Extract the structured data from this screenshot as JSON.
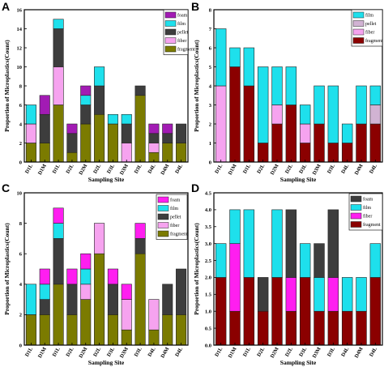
{
  "figure": {
    "ylabel": "Proportion of Microplastics(Count)",
    "xlabel": "Sampling Site"
  },
  "colors": {
    "foam": "#a21bb4",
    "film": "#1ee0ec",
    "pellet": "#3d3d3d",
    "fiber": "#f6a3ef",
    "fragment": "#7b7b00",
    "fragment_dark": "#8b0000",
    "fiber_bright": "#ff1ef0"
  },
  "chart_data": [
    {
      "panel": "A",
      "type": "bar",
      "stacked": true,
      "categories": [
        "D1L",
        "D1M",
        "D1L",
        "D2L",
        "D2M",
        "D2L",
        "D3L",
        "D3M",
        "D3L",
        "D4L",
        "D4M",
        "D4L"
      ],
      "series": [
        {
          "name": "fragment",
          "color": "#7b7b00",
          "values": [
            2,
            2,
            6,
            1,
            4,
            5,
            4,
            0,
            7,
            1,
            2,
            2
          ]
        },
        {
          "name": "fiber",
          "color": "#f6a3ef",
          "values": [
            2,
            0,
            4,
            0,
            0,
            0,
            0,
            2,
            0,
            1,
            0,
            0
          ]
        },
        {
          "name": "pellet",
          "color": "#3d3d3d",
          "values": [
            0,
            3,
            4,
            2,
            2,
            3,
            0,
            2,
            1,
            1,
            1,
            2
          ]
        },
        {
          "name": "film",
          "color": "#1ee0ec",
          "values": [
            2,
            0,
            1,
            0,
            1,
            2,
            1,
            1,
            0,
            0,
            0,
            0
          ]
        },
        {
          "name": "foam",
          "color": "#a21bb4",
          "values": [
            0,
            2,
            0,
            1,
            1,
            0,
            0,
            0,
            0,
            1,
            1,
            0
          ]
        }
      ],
      "ylim": [
        0,
        16
      ],
      "yticks": [
        0,
        2,
        4,
        6,
        8,
        10,
        12,
        14,
        16
      ],
      "legend": [
        "foam",
        "film",
        "pellet",
        "fiber",
        "fragment"
      ],
      "legend_position": "top-right"
    },
    {
      "panel": "B",
      "type": "bar",
      "stacked": true,
      "categories": [
        "D1L",
        "D1M",
        "D1L",
        "D2L",
        "D2M",
        "D2L",
        "D3L",
        "D3M",
        "D3L",
        "D4L",
        "D4M",
        "D4L"
      ],
      "series": [
        {
          "name": "fragment",
          "color": "#8b0000",
          "values": [
            0,
            5,
            4,
            1,
            2,
            3,
            1,
            2,
            1,
            1,
            2,
            2
          ]
        },
        {
          "name": "fiber",
          "color": "#f6a3ef",
          "values": [
            4,
            0,
            0,
            0,
            1,
            0,
            1,
            0,
            0,
            0,
            0,
            0
          ]
        },
        {
          "name": "pellet",
          "color": "#d1b3d3",
          "values": [
            0,
            0,
            0,
            0,
            0,
            0,
            0,
            0,
            0,
            0,
            0,
            1
          ]
        },
        {
          "name": "film",
          "color": "#1ee0ec",
          "values": [
            3,
            1,
            2,
            4,
            2,
            2,
            1,
            2,
            3,
            1,
            2,
            1
          ]
        }
      ],
      "ylim": [
        0,
        8
      ],
      "yticks": [
        0,
        1,
        2,
        3,
        4,
        5,
        6,
        7,
        8
      ],
      "legend": [
        "film",
        "pellet",
        "fiber",
        "fragment"
      ],
      "legend_position": "top-right"
    },
    {
      "panel": "C",
      "type": "bar",
      "stacked": true,
      "categories": [
        "D1L",
        "D1M",
        "D1L",
        "D2L",
        "D2M",
        "D2L",
        "D3L",
        "D3M",
        "D3L",
        "D4L",
        "D4M",
        "D4L"
      ],
      "series": [
        {
          "name": "fragment",
          "color": "#7b7b00",
          "values": [
            2,
            2,
            4,
            2,
            3,
            6,
            2,
            1,
            6,
            1,
            2,
            2
          ]
        },
        {
          "name": "fiber",
          "color": "#f6a3ef",
          "values": [
            0,
            0,
            0,
            0,
            1,
            2,
            0,
            2,
            0,
            2,
            0,
            0
          ]
        },
        {
          "name": "pellet",
          "color": "#3d3d3d",
          "values": [
            0,
            1,
            3,
            2,
            0,
            0,
            2,
            0,
            1,
            0,
            2,
            3
          ]
        },
        {
          "name": "film",
          "color": "#1ee0ec",
          "values": [
            2,
            1,
            1,
            0,
            1,
            0,
            0,
            0,
            0,
            0,
            0,
            0
          ]
        },
        {
          "name": "foam",
          "color": "#ff1ef0",
          "values": [
            0,
            1,
            1,
            1,
            1,
            0,
            1,
            1,
            1,
            0,
            0,
            0
          ]
        }
      ],
      "ylim": [
        0,
        10
      ],
      "yticks": [
        0,
        2,
        4,
        6,
        8,
        10
      ],
      "legend": [
        "foam",
        "film",
        "pellet",
        "fiber",
        "fragment"
      ],
      "legend_position": "top-right"
    },
    {
      "panel": "D",
      "type": "bar",
      "stacked": true,
      "categories": [
        "D1L",
        "D1M",
        "D1L",
        "D2L",
        "D2M",
        "D2L",
        "D3L",
        "D3M",
        "D3L",
        "D4L",
        "D4M",
        "D4L"
      ],
      "series": [
        {
          "name": "fragment",
          "color": "#8b0000",
          "values": [
            2,
            1,
            2,
            1,
            2,
            1,
            2,
            1,
            1,
            1,
            1,
            2
          ]
        },
        {
          "name": "fiber",
          "color": "#ff1ef0",
          "values": [
            0,
            2,
            0,
            0,
            0,
            1,
            0,
            0,
            1,
            0,
            0,
            0
          ]
        },
        {
          "name": "film",
          "color": "#1ee0ec",
          "values": [
            1,
            1,
            2,
            0,
            2,
            0,
            1,
            1,
            0,
            1,
            1,
            1
          ]
        },
        {
          "name": "foam",
          "color": "#3d3d3d",
          "values": [
            0,
            0,
            0,
            1,
            0,
            2,
            0,
            1,
            2,
            0,
            0,
            0
          ]
        }
      ],
      "ylim": [
        0,
        4.5
      ],
      "yticks": [
        0,
        0.5,
        1.0,
        1.5,
        2.0,
        2.5,
        3.0,
        3.5,
        4.0,
        4.5
      ],
      "yticklabels": [
        "0.0",
        "0.5",
        "1.0",
        "1.5",
        "2.0",
        "2.5",
        "3.0",
        "3.5",
        "4.0",
        "4.5"
      ],
      "legend": [
        "foam",
        "film",
        "fiber",
        "fragment"
      ],
      "legend_position": "top-right"
    }
  ]
}
